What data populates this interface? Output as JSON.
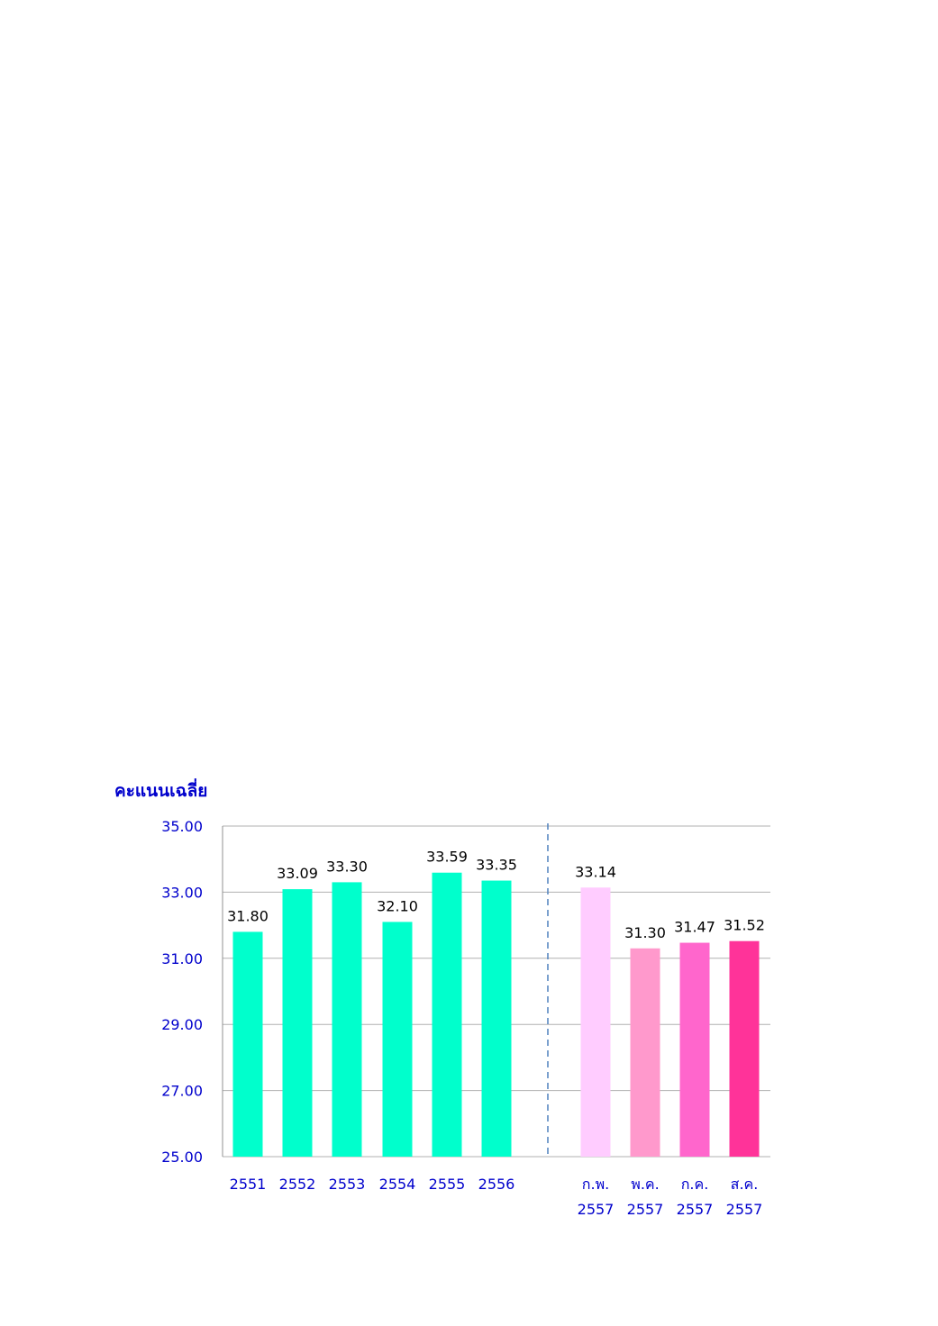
{
  "chart_data": {
    "type": "bar",
    "ylabel": "คะแนนเฉลี่ย",
    "ylim": [
      25,
      35
    ],
    "yticks": [
      "25.00",
      "27.00",
      "29.00",
      "31.00",
      "33.00",
      "35.00"
    ],
    "grid": true,
    "annotations": [
      "vertical dashed line separating yearly and monthly bars"
    ],
    "categories": [
      {
        "line1": "2551",
        "line2": ""
      },
      {
        "line1": "2552",
        "line2": ""
      },
      {
        "line1": "2553",
        "line2": ""
      },
      {
        "line1": "2554",
        "line2": ""
      },
      {
        "line1": "2555",
        "line2": ""
      },
      {
        "line1": "2556",
        "line2": ""
      },
      {
        "line1": "ก.พ.",
        "line2": "2557"
      },
      {
        "line1": "พ.ค.",
        "line2": "2557"
      },
      {
        "line1": "ก.ค.",
        "line2": "2557"
      },
      {
        "line1": "ส.ค.",
        "line2": "2557"
      }
    ],
    "values": [
      31.8,
      33.09,
      33.3,
      32.1,
      33.59,
      33.35,
      33.14,
      31.3,
      31.47,
      31.52
    ],
    "value_labels": [
      "31.80",
      "33.09",
      "33.30",
      "32.10",
      "33.59",
      "33.35",
      "33.14",
      "31.30",
      "31.47",
      "31.52"
    ],
    "colors": [
      "#00FFCC",
      "#00FFCC",
      "#00FFCC",
      "#00FFCC",
      "#00FFCC",
      "#00FFCC",
      "#FFCCFF",
      "#FF99CC",
      "#FF66CC",
      "#FF3399"
    ],
    "axis_text_color": "#0000CC",
    "gridline_color": "#B0B0B0",
    "divider_color": "#4F81BD"
  }
}
